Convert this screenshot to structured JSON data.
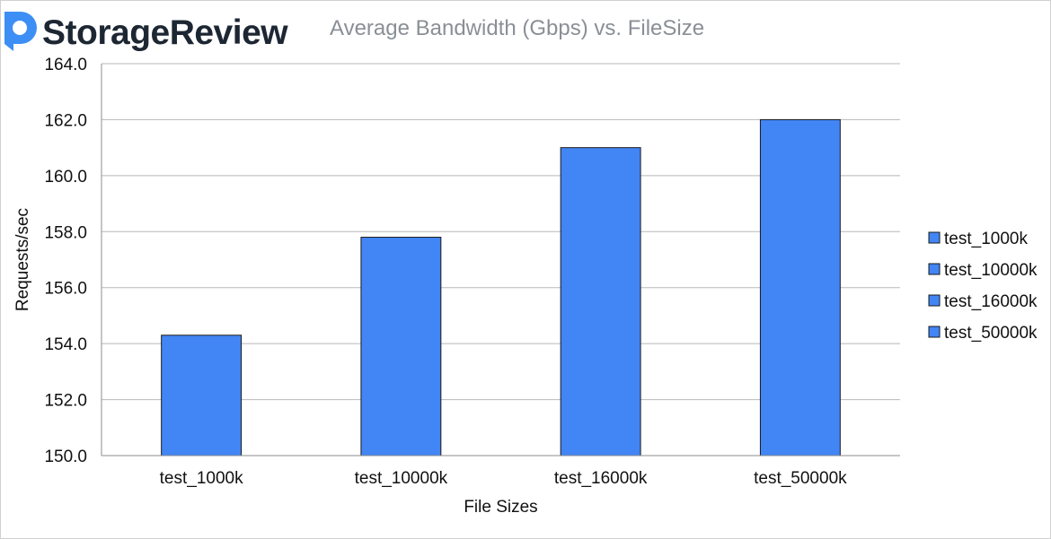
{
  "header": {
    "logo_text": "StorageReview",
    "logo_icon": "storagereview-logo-icon"
  },
  "chart_data": {
    "type": "bar",
    "title": "Average Bandwidth (Gbps) vs. FileSize",
    "xlabel": "File Sizes",
    "ylabel": "Requests/sec",
    "categories": [
      "test_1000k",
      "test_10000k",
      "test_16000k",
      "test_50000k"
    ],
    "values": [
      154.3,
      157.8,
      161.0,
      162.0
    ],
    "ylim": [
      150.0,
      164.0
    ],
    "yticks": [
      "150.0",
      "152.0",
      "154.0",
      "156.0",
      "158.0",
      "160.0",
      "162.0",
      "164.0"
    ],
    "legend": [
      "test_1000k",
      "test_10000k",
      "test_16000k",
      "test_50000k"
    ],
    "legend_position": "right",
    "grid": true,
    "bar_color": "#4285f4",
    "bar_border_color": "#1a1a1a"
  }
}
